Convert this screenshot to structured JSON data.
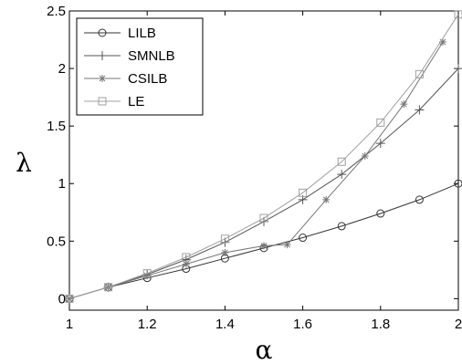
{
  "chart_data": {
    "type": "line",
    "xlabel": "α",
    "ylabel": "λ",
    "xlim": [
      1,
      2
    ],
    "ylim": [
      -0.1,
      2.5
    ],
    "xticks": [
      "1",
      "1.2",
      "1.4",
      "1.6",
      "1.8",
      "2"
    ],
    "yticks": [
      "0",
      "0.5",
      "1",
      "1.5",
      "2",
      "2.5"
    ],
    "grid": false,
    "legend_position": "top-left",
    "series": [
      {
        "name": "LILB",
        "marker": "circle",
        "color": "#333333",
        "x": [
          1.0,
          1.1,
          1.2,
          1.3,
          1.4,
          1.5,
          1.6,
          1.7,
          1.8,
          1.9,
          2.0
        ],
        "y": [
          0.0,
          0.1,
          0.18,
          0.26,
          0.35,
          0.44,
          0.53,
          0.63,
          0.74,
          0.86,
          1.0
        ]
      },
      {
        "name": "SMNLB",
        "marker": "plus",
        "color": "#555555",
        "x": [
          1.0,
          1.1,
          1.2,
          1.3,
          1.4,
          1.5,
          1.6,
          1.7,
          1.8,
          1.9,
          2.0
        ],
        "y": [
          0.0,
          0.1,
          0.21,
          0.34,
          0.49,
          0.67,
          0.86,
          1.08,
          1.35,
          1.64,
          2.0
        ]
      },
      {
        "name": "CSILB",
        "marker": "star",
        "color": "#777777",
        "x": [
          1.0,
          1.1,
          1.2,
          1.3,
          1.4,
          1.5,
          1.56,
          1.66,
          1.76,
          1.86,
          1.96
        ],
        "y": [
          0.0,
          0.1,
          0.2,
          0.3,
          0.4,
          0.46,
          0.47,
          0.86,
          1.24,
          1.69,
          2.23
        ]
      },
      {
        "name": "LE",
        "marker": "square",
        "color": "#a0a0a0",
        "x": [
          1.0,
          1.1,
          1.2,
          1.3,
          1.4,
          1.5,
          1.6,
          1.7,
          1.8,
          1.9,
          2.0
        ],
        "y": [
          0.0,
          0.1,
          0.22,
          0.36,
          0.52,
          0.7,
          0.92,
          1.19,
          1.53,
          1.95,
          2.47
        ]
      }
    ]
  }
}
